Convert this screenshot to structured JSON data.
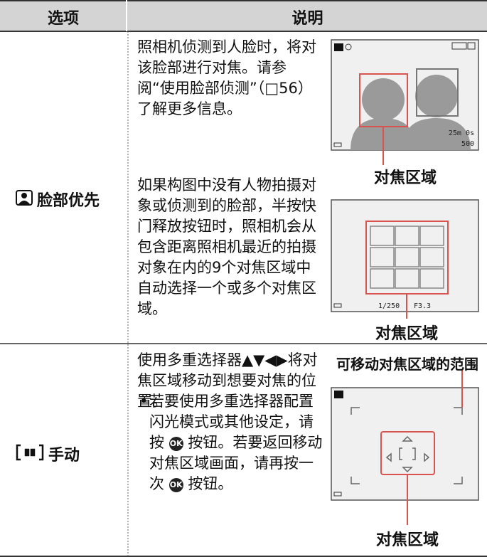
{
  "header": {
    "option": "选项",
    "description": "说明"
  },
  "rows": [
    {
      "option": "脸部优先",
      "paragraphs": [
        [
          "照相机侦测到人脸时，将对该脸部进行对焦。请参阅“使用脸部侦测”（□56）了解更多信息。"
        ],
        [
          "如果构图中没有人物拍摄对象或侦测到的脸部，半按快门释放按钮时，照相机会从包含距离照相机最近的拍摄对象在内的9个对焦区域中自动选择一个或多个对焦区域。"
        ]
      ],
      "screens": [
        {
          "caption": "对焦区域",
          "remaining": "25m 0s",
          "shots": "500"
        },
        {
          "caption": "对焦区域",
          "shutter": "1/250",
          "aperture": "F3.3"
        }
      ]
    },
    {
      "option": "手动",
      "paragraphs": [
        [
          "使用多重选择器▲▼◀▶将对焦区域移动到想要对焦的位置。"
        ],
        [
          "若要使用多重选择器配置闪光模式或其他设定，请按 ",
          "OK",
          " 按钮。若要返回移动对焦区域画面，请再按一次 ",
          "OK",
          " 按钮。"
        ]
      ],
      "screens": [
        {
          "top_caption": "可移动对焦区域的范围",
          "caption": "对焦区域"
        }
      ]
    }
  ]
}
